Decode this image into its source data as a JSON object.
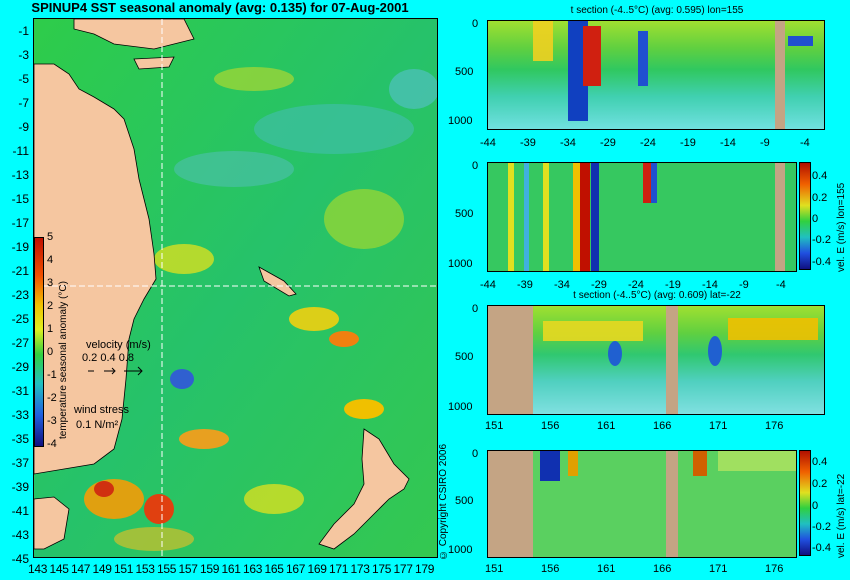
{
  "map": {
    "title": "SPINUP4 SST seasonal anomaly (avg: 0.135) for 07-Aug-2001",
    "lat_ticks": [
      "-1",
      "-3",
      "-5",
      "-7",
      "-9",
      "-11",
      "-13",
      "-15",
      "-17",
      "-19",
      "-21",
      "-23",
      "-25",
      "-27",
      "-29",
      "-31",
      "-33",
      "-35",
      "-37",
      "-39",
      "-41",
      "-43",
      "-45"
    ],
    "lon_ticks": [
      "143",
      "145",
      "147",
      "149",
      "151",
      "153",
      "155",
      "157",
      "159",
      "161",
      "163",
      "165",
      "167",
      "169",
      "171",
      "173",
      "175",
      "177",
      "179"
    ],
    "colorbar": {
      "label": "temperature seasonal anomaly (°C)",
      "ticks": [
        "5",
        "4",
        "3",
        "2",
        "1",
        "0",
        "-1",
        "-2",
        "-3",
        "-4"
      ]
    },
    "velocity_legend": {
      "title": "velocity (m/s)",
      "values": "0.2 0.4 0.8"
    },
    "wind_legend": {
      "title": "wind stress",
      "value": "0.1 N/m²"
    },
    "copyright": "© Copyright CSIRO 2006",
    "colors": {
      "land": "#f5c6a0",
      "ocean_base": "#22c455",
      "frame_bg": "#00ffff"
    }
  },
  "panels": [
    {
      "id": "t-lon",
      "title": "t section (-4..5°C) (avg: 0.595) lon=155",
      "y_ticks": [
        "0",
        "500",
        "1000"
      ],
      "x_ticks": [
        "-44",
        "-39",
        "-34",
        "-29",
        "-24",
        "-19",
        "-14",
        "-9",
        "-4"
      ]
    },
    {
      "id": "v-lon",
      "title": "",
      "y_ticks": [
        "0",
        "500",
        "1000"
      ],
      "x_ticks": [
        "-44",
        "-39",
        "-34",
        "-29",
        "-24",
        "-19",
        "-14",
        "-9",
        "-4"
      ],
      "colorbar_label": "vel. E (m/s) lon=155",
      "colorbar_ticks": [
        "0.4",
        "0.2",
        "0",
        "-0.2",
        "-0.4"
      ]
    },
    {
      "id": "t-lat",
      "title": "t section (-4..5°C) (avg: 0.609) lat=-22",
      "y_ticks": [
        "0",
        "500",
        "1000"
      ],
      "x_ticks": [
        "151",
        "156",
        "161",
        "166",
        "171",
        "176"
      ]
    },
    {
      "id": "v-lat",
      "title": "",
      "y_ticks": [
        "0",
        "500",
        "1000"
      ],
      "x_ticks": [
        "151",
        "156",
        "161",
        "166",
        "171",
        "176"
      ],
      "colorbar_label": "vel. E (m/s) lat=-22",
      "colorbar_ticks": [
        "0.4",
        "0.2",
        "0",
        "-0.2",
        "-0.4"
      ]
    }
  ]
}
